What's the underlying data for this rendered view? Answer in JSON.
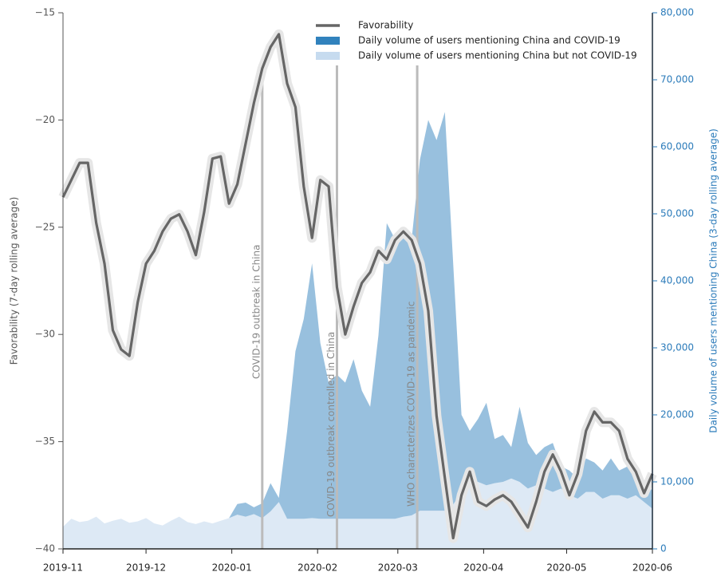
{
  "chart_data": {
    "type": "line",
    "stacked": true,
    "xlim": [
      0,
      213
    ],
    "xticks": [
      {
        "value": 0,
        "label": "2019-11"
      },
      {
        "value": 30,
        "label": "2019-12"
      },
      {
        "value": 61,
        "label": "2020-01"
      },
      {
        "value": 92,
        "label": "2020-02"
      },
      {
        "value": 121,
        "label": "2020-03"
      },
      {
        "value": 152,
        "label": "2020-04"
      },
      {
        "value": 182,
        "label": "2020-05"
      },
      {
        "value": 213,
        "label": "2020-06"
      }
    ],
    "ylim": [
      -40,
      -15
    ],
    "yticks": [
      {
        "value": -40,
        "label": "−40"
      },
      {
        "value": -35,
        "label": "−35"
      },
      {
        "value": -30,
        "label": "−30"
      },
      {
        "value": -25,
        "label": "−25"
      },
      {
        "value": -20,
        "label": "−20"
      },
      {
        "value": -15,
        "label": "−15"
      }
    ],
    "y2lim": [
      0,
      80000
    ],
    "y2ticks": [
      0,
      {
        "value": 10000,
        "label": "10,000"
      },
      {
        "value": 20000,
        "label": "20,000"
      },
      {
        "value": 30000,
        "label": "30,000"
      },
      {
        "value": 40000,
        "label": "40,000"
      },
      {
        "value": 50000,
        "label": "50,000"
      },
      {
        "value": 60000,
        "label": "60,000"
      },
      {
        "value": 70000,
        "label": "70,000"
      },
      {
        "value": 80000,
        "label": "80,000"
      }
    ],
    "ylabel": "Favorability (7-day rolling average)",
    "y2label": "Daily volume of users mentioning China (3-day rolling average)",
    "legend": "upper center",
    "x": [
      0,
      3,
      6,
      9,
      12,
      15,
      18,
      21,
      24,
      27,
      30,
      33,
      36,
      39,
      42,
      45,
      48,
      51,
      54,
      57,
      60,
      63,
      66,
      69,
      72,
      75,
      78,
      81,
      84,
      87,
      90,
      93,
      96,
      99,
      102,
      105,
      108,
      111,
      114,
      117,
      120,
      123,
      126,
      129,
      132,
      135,
      138,
      141,
      144,
      147,
      150,
      153,
      156,
      159,
      162,
      165,
      168,
      171,
      174,
      177,
      180,
      183,
      186,
      189,
      192,
      195,
      198,
      201,
      204,
      207,
      210,
      213
    ],
    "series": [
      {
        "name": "Favorability",
        "color": "#666666",
        "axis": "y",
        "values": [
          -23.6,
          -22.8,
          -22.0,
          -22.0,
          -24.8,
          -26.7,
          -29.8,
          -30.7,
          -31.0,
          -28.5,
          -26.7,
          -26.1,
          -25.2,
          -24.6,
          -24.4,
          -25.2,
          -26.3,
          -24.3,
          -21.8,
          -21.7,
          -23.9,
          -23.0,
          -21.1,
          -19.2,
          -17.6,
          -16.6,
          -16.0,
          -18.3,
          -19.4,
          -23.1,
          -25.5,
          -22.8,
          -23.1,
          -27.8,
          -30.0,
          -28.7,
          -27.6,
          -27.1,
          -26.1,
          -26.5,
          -25.6,
          -25.2,
          -25.6,
          -26.7,
          -28.9,
          -33.8,
          -36.7,
          -39.5,
          -37.5,
          -36.4,
          -37.8,
          -38.0,
          -37.7,
          -37.5,
          -37.8,
          -38.4,
          -39.0,
          -37.8,
          -36.4,
          -35.6,
          -36.4,
          -37.5,
          -36.5,
          -34.5,
          -33.6,
          -34.1,
          -34.1,
          -34.5,
          -35.8,
          -36.4,
          -37.4,
          -36.5
        ]
      },
      {
        "name": "Daily volume of users mentioning China and COVID-19",
        "color": "#3182bd",
        "axis": "y2",
        "values": [
          0,
          0,
          0,
          0,
          0,
          0,
          0,
          0,
          0,
          0,
          0,
          0,
          0,
          0,
          0,
          0,
          0,
          0,
          0,
          0,
          0,
          1600,
          2100,
          1000,
          2200,
          4200,
          600,
          13100,
          25000,
          29800,
          38000,
          26200,
          20300,
          21500,
          20300,
          23800,
          19100,
          16700,
          27400,
          44100,
          41700,
          43200,
          41200,
          52400,
          58300,
          55300,
          59500,
          36000,
          11500,
          7600,
          9400,
          12300,
          6600,
          7000,
          4700,
          11200,
          6800,
          4500,
          6200,
          7300,
          3300,
          3700,
          3000,
          5000,
          4400,
          4200,
          5500,
          3700,
          4800,
          2500,
          2900,
          2700
        ]
      },
      {
        "name": "Daily volume of users mentioning China but not COVID-19",
        "color": "#c6dbef",
        "axis": "y2",
        "values": [
          3300,
          4500,
          4000,
          4200,
          4800,
          3800,
          4200,
          4500,
          3900,
          4100,
          4600,
          3800,
          3500,
          4200,
          4800,
          4000,
          3700,
          4100,
          3800,
          4200,
          4600,
          5100,
          4800,
          5200,
          4600,
          5600,
          7000,
          4500,
          4500,
          4500,
          4600,
          4500,
          4500,
          4500,
          4500,
          4500,
          4500,
          4500,
          4500,
          4500,
          4500,
          4800,
          5000,
          5700,
          5700,
          5700,
          5700,
          6600,
          8500,
          10000,
          10000,
          9500,
          9800,
          10000,
          10500,
          10000,
          9000,
          9500,
          9000,
          8500,
          9000,
          8000,
          7500,
          8500,
          8500,
          7500,
          8000,
          8000,
          7500,
          8000,
          7000,
          6000
        ]
      }
    ],
    "annotations": [
      {
        "text": "COVID-19 outbreak in China",
        "x": 72
      },
      {
        "text": "COVID-19 outbreak controlled in China",
        "x": 99
      },
      {
        "text": "WHO characterizes COVID-19 as pandemic",
        "x": 128
      }
    ]
  }
}
